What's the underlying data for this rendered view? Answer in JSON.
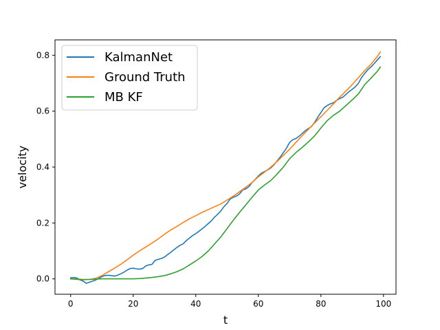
{
  "chart_data": {
    "type": "line",
    "title": "",
    "xlabel": "t",
    "ylabel": "velocity",
    "xlim": [
      -5,
      104
    ],
    "ylim": [
      -0.055,
      0.855
    ],
    "xticks": [
      0,
      20,
      40,
      60,
      80,
      100
    ],
    "yticks": [
      0.0,
      0.2,
      0.4,
      0.6,
      0.8
    ],
    "xtick_labels": [
      "0",
      "20",
      "40",
      "60",
      "80",
      "100"
    ],
    "ytick_labels": [
      "0.0",
      "0.2",
      "0.4",
      "0.6",
      "0.8"
    ],
    "grid": false,
    "legend_position": "top-left",
    "series": [
      {
        "name": "KalmanNet",
        "color": "#1f77b4",
        "points": [
          [
            0,
            0.004
          ],
          [
            1,
            0.005
          ],
          [
            2,
            0.003
          ],
          [
            3,
            -0.004
          ],
          [
            4,
            -0.008
          ],
          [
            5,
            -0.016
          ],
          [
            6,
            -0.012
          ],
          [
            7,
            -0.008
          ],
          [
            8,
            -0.004
          ],
          [
            9,
            0.002
          ],
          [
            10,
            0.008
          ],
          [
            11,
            0.012
          ],
          [
            12,
            0.013
          ],
          [
            13,
            0.012
          ],
          [
            14,
            0.01
          ],
          [
            15,
            0.013
          ],
          [
            16,
            0.018
          ],
          [
            17,
            0.024
          ],
          [
            18,
            0.031
          ],
          [
            19,
            0.037
          ],
          [
            20,
            0.038
          ],
          [
            21,
            0.036
          ],
          [
            22,
            0.035
          ],
          [
            23,
            0.037
          ],
          [
            24,
            0.046
          ],
          [
            25,
            0.05
          ],
          [
            26,
            0.052
          ],
          [
            27,
            0.066
          ],
          [
            28,
            0.07
          ],
          [
            29,
            0.073
          ],
          [
            30,
            0.078
          ],
          [
            31,
            0.087
          ],
          [
            32,
            0.095
          ],
          [
            33,
            0.104
          ],
          [
            34,
            0.113
          ],
          [
            35,
            0.12
          ],
          [
            36,
            0.126
          ],
          [
            37,
            0.137
          ],
          [
            38,
            0.146
          ],
          [
            39,
            0.155
          ],
          [
            40,
            0.162
          ],
          [
            41,
            0.17
          ],
          [
            42,
            0.179
          ],
          [
            43,
            0.188
          ],
          [
            44,
            0.198
          ],
          [
            45,
            0.208
          ],
          [
            46,
            0.221
          ],
          [
            47,
            0.231
          ],
          [
            48,
            0.243
          ],
          [
            49,
            0.258
          ],
          [
            50,
            0.27
          ],
          [
            51,
            0.286
          ],
          [
            52,
            0.292
          ],
          [
            53,
            0.296
          ],
          [
            54,
            0.304
          ],
          [
            55,
            0.318
          ],
          [
            56,
            0.322
          ],
          [
            57,
            0.33
          ],
          [
            58,
            0.345
          ],
          [
            59,
            0.356
          ],
          [
            60,
            0.368
          ],
          [
            61,
            0.378
          ],
          [
            62,
            0.384
          ],
          [
            63,
            0.39
          ],
          [
            64,
            0.397
          ],
          [
            65,
            0.408
          ],
          [
            66,
            0.422
          ],
          [
            67,
            0.436
          ],
          [
            68,
            0.452
          ],
          [
            69,
            0.468
          ],
          [
            70,
            0.488
          ],
          [
            71,
            0.498
          ],
          [
            72,
            0.502
          ],
          [
            73,
            0.51
          ],
          [
            74,
            0.52
          ],
          [
            75,
            0.53
          ],
          [
            76,
            0.538
          ],
          [
            77,
            0.545
          ],
          [
            78,
            0.56
          ],
          [
            79,
            0.578
          ],
          [
            80,
            0.595
          ],
          [
            81,
            0.612
          ],
          [
            82,
            0.62
          ],
          [
            83,
            0.626
          ],
          [
            84,
            0.63
          ],
          [
            85,
            0.638
          ],
          [
            86,
            0.645
          ],
          [
            87,
            0.65
          ],
          [
            88,
            0.66
          ],
          [
            89,
            0.67
          ],
          [
            90,
            0.678
          ],
          [
            91,
            0.687
          ],
          [
            92,
            0.7
          ],
          [
            93,
            0.72
          ],
          [
            94,
            0.735
          ],
          [
            95,
            0.748
          ],
          [
            96,
            0.758
          ],
          [
            97,
            0.77
          ],
          [
            98,
            0.783
          ],
          [
            99,
            0.795
          ]
        ]
      },
      {
        "name": "Ground Truth",
        "color": "#ff7f0e",
        "points": [
          [
            0,
            0.0
          ],
          [
            2,
            -0.002
          ],
          [
            4,
            -0.003
          ],
          [
            6,
            -0.002
          ],
          [
            8,
            0.002
          ],
          [
            10,
            0.012
          ],
          [
            12,
            0.025
          ],
          [
            14,
            0.038
          ],
          [
            16,
            0.052
          ],
          [
            18,
            0.068
          ],
          [
            20,
            0.085
          ],
          [
            22,
            0.1
          ],
          [
            24,
            0.114
          ],
          [
            26,
            0.128
          ],
          [
            28,
            0.143
          ],
          [
            30,
            0.16
          ],
          [
            32,
            0.175
          ],
          [
            34,
            0.188
          ],
          [
            36,
            0.202
          ],
          [
            38,
            0.215
          ],
          [
            40,
            0.226
          ],
          [
            42,
            0.238
          ],
          [
            44,
            0.248
          ],
          [
            46,
            0.258
          ],
          [
            48,
            0.268
          ],
          [
            50,
            0.282
          ],
          [
            52,
            0.296
          ],
          [
            54,
            0.312
          ],
          [
            56,
            0.328
          ],
          [
            58,
            0.345
          ],
          [
            60,
            0.365
          ],
          [
            62,
            0.382
          ],
          [
            64,
            0.4
          ],
          [
            66,
            0.42
          ],
          [
            68,
            0.442
          ],
          [
            70,
            0.464
          ],
          [
            72,
            0.488
          ],
          [
            74,
            0.512
          ],
          [
            76,
            0.535
          ],
          [
            78,
            0.558
          ],
          [
            80,
            0.58
          ],
          [
            82,
            0.603
          ],
          [
            84,
            0.626
          ],
          [
            86,
            0.65
          ],
          [
            88,
            0.672
          ],
          [
            90,
            0.695
          ],
          [
            92,
            0.72
          ],
          [
            94,
            0.745
          ],
          [
            96,
            0.768
          ],
          [
            98,
            0.795
          ],
          [
            99,
            0.812
          ]
        ]
      },
      {
        "name": "MB KF",
        "color": "#2ca02c",
        "points": [
          [
            0,
            0.0
          ],
          [
            2,
            -0.001
          ],
          [
            4,
            -0.002
          ],
          [
            6,
            -0.002
          ],
          [
            8,
            -0.001
          ],
          [
            10,
            0.0
          ],
          [
            12,
            0.0
          ],
          [
            14,
            0.0
          ],
          [
            16,
            0.0
          ],
          [
            18,
            0.0
          ],
          [
            20,
            0.0
          ],
          [
            22,
            0.001
          ],
          [
            24,
            0.003
          ],
          [
            26,
            0.005
          ],
          [
            28,
            0.008
          ],
          [
            30,
            0.012
          ],
          [
            32,
            0.018
          ],
          [
            34,
            0.026
          ],
          [
            36,
            0.036
          ],
          [
            38,
            0.05
          ],
          [
            40,
            0.064
          ],
          [
            42,
            0.08
          ],
          [
            44,
            0.1
          ],
          [
            46,
            0.125
          ],
          [
            48,
            0.15
          ],
          [
            50,
            0.18
          ],
          [
            52,
            0.21
          ],
          [
            54,
            0.238
          ],
          [
            56,
            0.265
          ],
          [
            58,
            0.292
          ],
          [
            60,
            0.318
          ],
          [
            62,
            0.336
          ],
          [
            64,
            0.352
          ],
          [
            66,
            0.375
          ],
          [
            68,
            0.4
          ],
          [
            70,
            0.43
          ],
          [
            72,
            0.452
          ],
          [
            74,
            0.47
          ],
          [
            76,
            0.49
          ],
          [
            78,
            0.512
          ],
          [
            80,
            0.54
          ],
          [
            82,
            0.566
          ],
          [
            84,
            0.585
          ],
          [
            86,
            0.6
          ],
          [
            88,
            0.62
          ],
          [
            90,
            0.64
          ],
          [
            92,
            0.662
          ],
          [
            94,
            0.695
          ],
          [
            96,
            0.718
          ],
          [
            98,
            0.742
          ],
          [
            99,
            0.758
          ]
        ]
      }
    ]
  }
}
